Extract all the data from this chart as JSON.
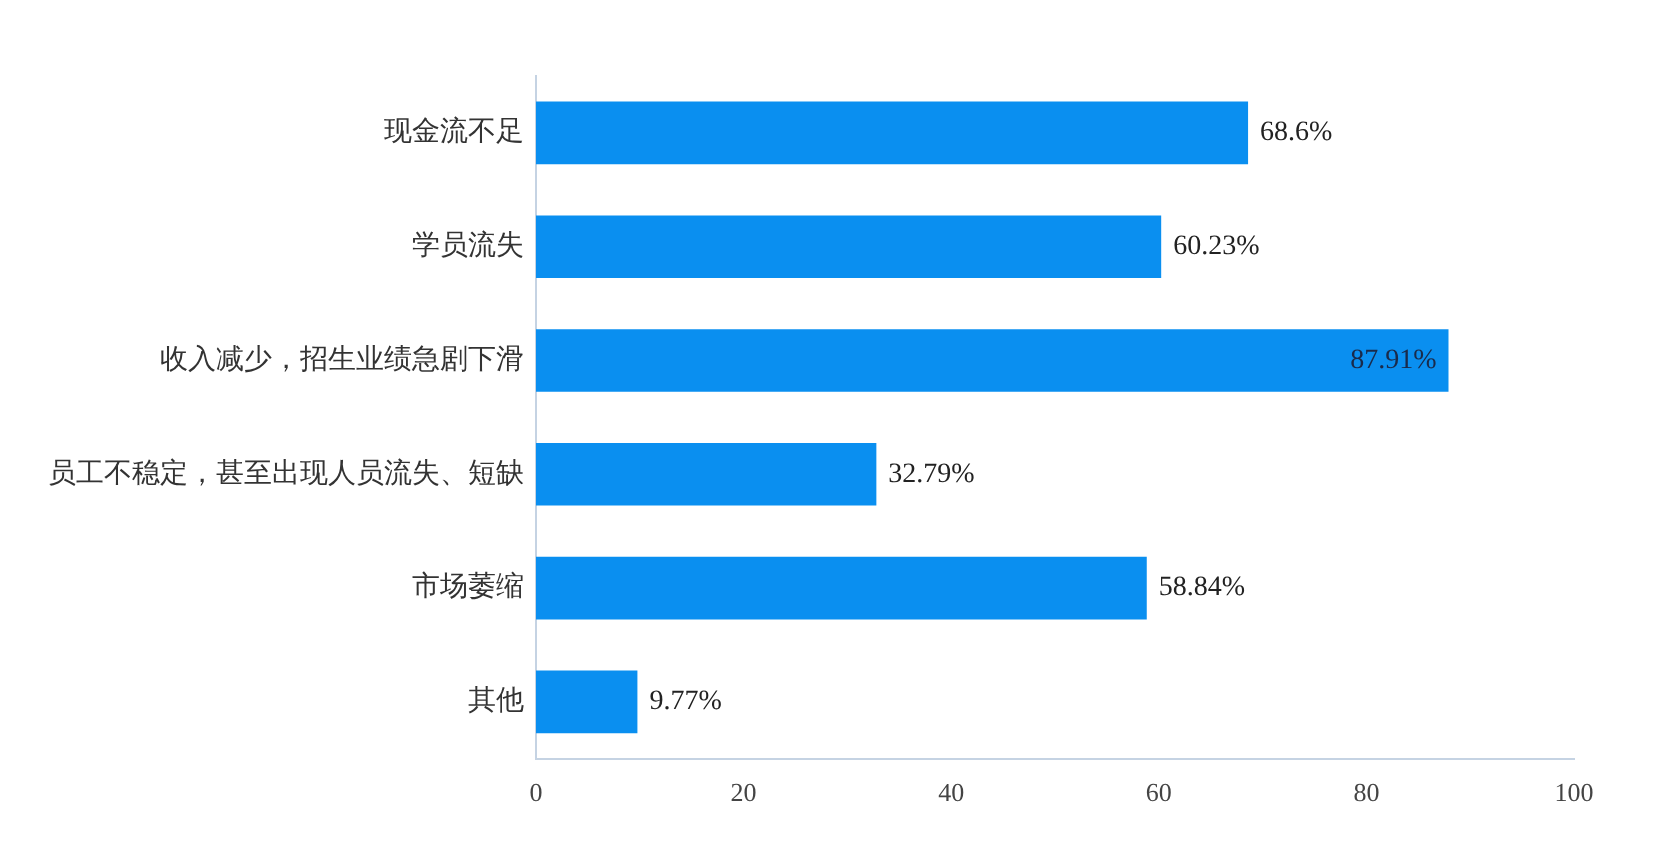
{
  "chart_data": {
    "type": "bar",
    "orientation": "horizontal",
    "categories": [
      "现金流不足",
      "学员流失",
      "收入减少，招生业绩急剧下滑",
      "员工不稳定，甚至出现人员流失、短缺",
      "市场萎缩",
      "其他"
    ],
    "values": [
      68.6,
      60.23,
      87.91,
      32.79,
      58.84,
      9.77
    ],
    "value_labels": [
      "68.6%",
      "60.23%",
      "87.91%",
      "32.79%",
      "58.84%",
      "9.77%"
    ],
    "color": "#0a8ff0",
    "xlim": [
      0,
      100
    ],
    "xticks": [
      0,
      20,
      40,
      60,
      80,
      100
    ],
    "grid": false,
    "legend": false
  }
}
